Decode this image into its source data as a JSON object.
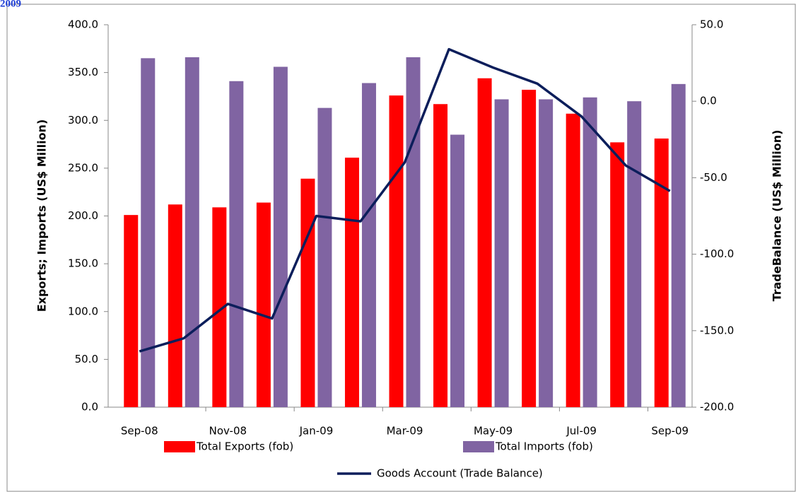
{
  "caption": "2009",
  "chart_data": {
    "type": "bar",
    "categories": [
      "Sep-08",
      null,
      "Nov-08",
      null,
      "Jan-09",
      null,
      "Mar-09",
      null,
      "May-09",
      null,
      "Jul-09",
      null,
      "Sep-09"
    ],
    "series": [
      {
        "name": "Total Exports (fob)",
        "type": "bar",
        "color": "#ff0000",
        "values": [
          201,
          212,
          209,
          214,
          239,
          261,
          326,
          317,
          344,
          332,
          307,
          277,
          281
        ]
      },
      {
        "name": "Total Imports (fob)",
        "type": "bar",
        "color": "#8064a2",
        "values": [
          365,
          366,
          341,
          356,
          313,
          339,
          366,
          285,
          322,
          322,
          324,
          320,
          338
        ]
      },
      {
        "name": "Goods Account (Trade Balance)",
        "type": "line",
        "axis": "y2",
        "color": "#0c1e5b",
        "values": [
          -163.5,
          -155,
          -132.5,
          -142,
          -75,
          -78.5,
          -40,
          34,
          22,
          11.5,
          -10,
          -42,
          -58.7
        ]
      }
    ],
    "ylabel": "Exports; Imports (US$ Million)",
    "y2label": "TradeBalance (US$ Million)",
    "ylim": [
      0,
      400
    ],
    "yticks": [
      {
        "value": 0,
        "label": "0.0"
      },
      {
        "value": 50,
        "label": "50.0"
      },
      {
        "value": 100,
        "label": "100.0"
      },
      {
        "value": 150,
        "label": "150.0"
      },
      {
        "value": 200,
        "label": "200.0"
      },
      {
        "value": 250,
        "label": "250.0"
      },
      {
        "value": 300,
        "label": "300.0"
      },
      {
        "value": 350,
        "label": "350.0"
      },
      {
        "value": 400,
        "label": "400.0"
      }
    ],
    "y2lim": [
      -200,
      50
    ],
    "y2ticks": [
      {
        "value": -200,
        "label": "-200.0"
      },
      {
        "value": -150,
        "label": "-150.0"
      },
      {
        "value": -100,
        "label": "-100.0"
      },
      {
        "value": -50,
        "label": "-50.0"
      },
      {
        "value": 0,
        "label": "0.0"
      },
      {
        "value": 50,
        "label": "50.0"
      }
    ],
    "grid": false
  }
}
